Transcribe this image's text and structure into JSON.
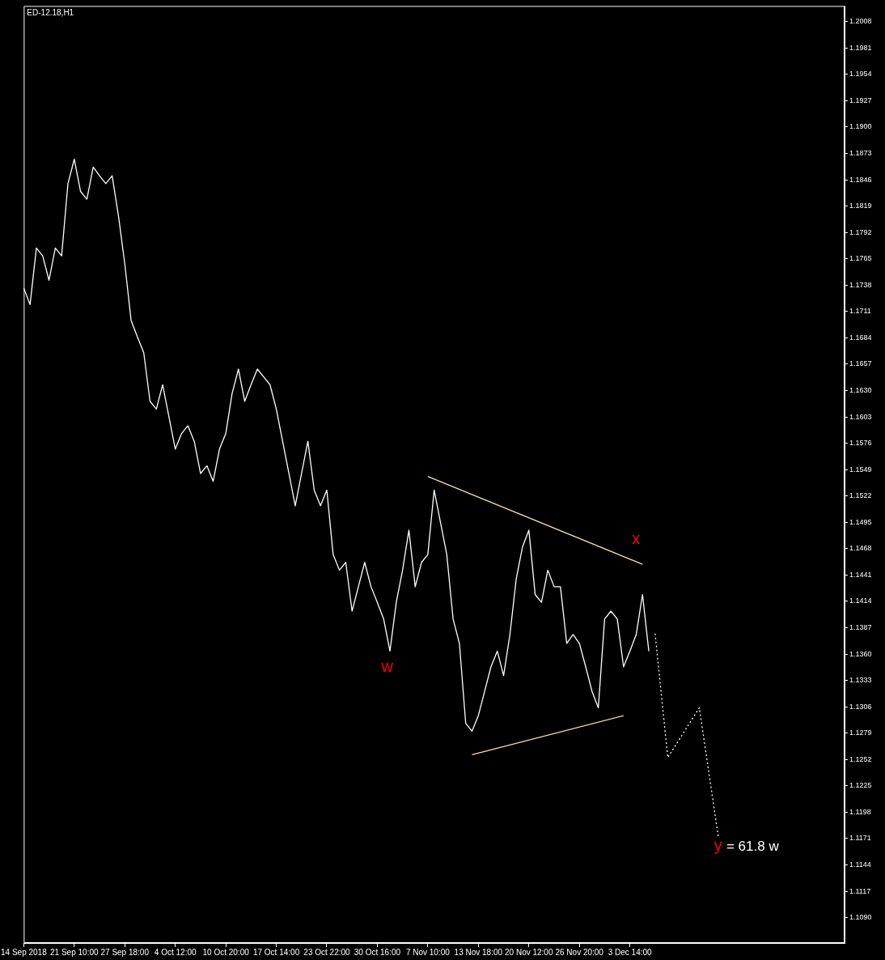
{
  "chart_data": {
    "type": "line",
    "title": "ED-12.18,H1",
    "categories": [
      "14 Sep 2018",
      null,
      null,
      null,
      null,
      null,
      null,
      null,
      "21 Sep 10:00",
      null,
      null,
      null,
      null,
      null,
      null,
      null,
      "27 Sep 18:00",
      null,
      null,
      null,
      null,
      null,
      null,
      null,
      "4 Oct 12:00",
      null,
      null,
      null,
      null,
      null,
      null,
      null,
      "10 Oct 20:00",
      null,
      null,
      null,
      null,
      null,
      null,
      null,
      "17 Oct 14:00",
      null,
      null,
      null,
      null,
      null,
      null,
      null,
      "23 Oct 22:00",
      null,
      null,
      null,
      null,
      null,
      null,
      null,
      "30 Oct 16:00",
      null,
      null,
      null,
      null,
      null,
      null,
      null,
      "7 Nov 10:00",
      null,
      null,
      null,
      null,
      null,
      null,
      null,
      "13 Nov 18:00",
      null,
      null,
      null,
      null,
      null,
      null,
      null,
      "20 Nov 12:00",
      null,
      null,
      null,
      null,
      null,
      null,
      null,
      "26 Nov 20:00",
      null,
      null,
      null,
      null,
      null,
      null,
      null,
      "3 Dec 14:00",
      null,
      null,
      null,
      null,
      null,
      null,
      null,
      null,
      null,
      null,
      null,
      null,
      null,
      null,
      null,
      null,
      null,
      null,
      null,
      null,
      null,
      null,
      null,
      null,
      null,
      null,
      null,
      null,
      null,
      null,
      null,
      null,
      null,
      null
    ],
    "series": [
      {
        "color": "#ffffff",
        "values": [
          1.1735,
          1.1718,
          1.1776,
          1.1768,
          1.1743,
          1.1776,
          1.1768,
          1.1842,
          1.1867,
          1.1834,
          1.1826,
          1.1859,
          1.185,
          1.1842,
          1.185,
          1.1809,
          1.176,
          1.1702,
          1.1685,
          1.1669,
          1.1619,
          1.1611,
          1.1636,
          1.1603,
          1.157,
          1.1586,
          1.1594,
          1.1578,
          1.1545,
          1.1553,
          1.1537,
          1.157,
          1.1586,
          1.1627,
          1.1652,
          1.1619,
          1.1636,
          1.1652,
          1.1644,
          1.1636,
          1.1611,
          1.1578,
          1.1545,
          1.1512,
          1.1545,
          1.1578,
          1.1528,
          1.1512,
          1.1528,
          1.1462,
          1.1446,
          1.1454,
          1.1404,
          1.1429,
          1.1454,
          1.1429,
          1.1413,
          1.1396,
          1.1363,
          1.1413,
          1.1446,
          1.1487,
          1.1429,
          1.1454,
          1.1462,
          1.1528,
          1.1495,
          1.1462,
          1.1396,
          1.1371,
          1.1289,
          1.1281,
          1.1297,
          1.1322,
          1.1347,
          1.1363,
          1.1338,
          1.138,
          1.1437,
          1.147,
          1.1487,
          1.1421,
          1.1413,
          1.1446,
          1.1429,
          1.1429,
          1.1371,
          1.138,
          1.1371,
          1.1347,
          1.1322,
          1.1305,
          1.1396,
          1.1404,
          1.1396,
          1.1347,
          1.1363,
          1.138,
          1.1421,
          1.1363,
          null,
          null,
          null,
          null,
          null,
          null,
          null,
          null,
          null,
          null,
          null,
          null,
          null,
          null,
          null,
          null,
          null,
          null,
          null,
          null,
          null,
          null,
          null,
          null,
          null,
          null,
          null,
          null,
          null,
          null,
          null
        ]
      },
      {
        "color": "#ffffff",
        "line_style": "dotted",
        "values": [
          null,
          null,
          null,
          null,
          null,
          null,
          null,
          null,
          null,
          null,
          null,
          null,
          null,
          null,
          null,
          null,
          null,
          null,
          null,
          null,
          null,
          null,
          null,
          null,
          null,
          null,
          null,
          null,
          null,
          null,
          null,
          null,
          null,
          null,
          null,
          null,
          null,
          null,
          null,
          null,
          null,
          null,
          null,
          null,
          null,
          null,
          null,
          null,
          null,
          null,
          null,
          null,
          null,
          null,
          null,
          null,
          null,
          null,
          null,
          null,
          null,
          null,
          null,
          null,
          null,
          null,
          null,
          null,
          null,
          null,
          null,
          null,
          null,
          null,
          null,
          null,
          null,
          null,
          null,
          null,
          null,
          null,
          null,
          null,
          null,
          null,
          null,
          null,
          null,
          null,
          null,
          null,
          null,
          null,
          null,
          null,
          null,
          null,
          null,
          null,
          1.1381,
          null,
          1.1254,
          null,
          null,
          null,
          null,
          1.1305,
          null,
          null,
          1.1173,
          null,
          null,
          null,
          null,
          null,
          null,
          null,
          null,
          null,
          null,
          null,
          null,
          null,
          null,
          null,
          null,
          null,
          null,
          null,
          null
        ]
      },
      {
        "color": "#f5deb3",
        "values": [
          null,
          null,
          null,
          null,
          null,
          null,
          null,
          null,
          null,
          null,
          null,
          null,
          null,
          null,
          null,
          null,
          null,
          null,
          null,
          null,
          null,
          null,
          null,
          null,
          null,
          null,
          null,
          null,
          null,
          null,
          null,
          null,
          null,
          null,
          null,
          null,
          null,
          null,
          null,
          null,
          null,
          null,
          null,
          null,
          null,
          null,
          null,
          null,
          null,
          null,
          null,
          null,
          null,
          null,
          null,
          null,
          null,
          null,
          null,
          null,
          null,
          null,
          null,
          null,
          1.1542,
          null,
          null,
          null,
          null,
          null,
          null,
          null,
          null,
          null,
          null,
          null,
          null,
          null,
          null,
          null,
          null,
          null,
          null,
          null,
          null,
          null,
          null,
          null,
          null,
          null,
          null,
          null,
          null,
          null,
          null,
          null,
          null,
          null,
          1.1452,
          null,
          null,
          null,
          null,
          null,
          null,
          null,
          null,
          null,
          null,
          null,
          null,
          null,
          null,
          null,
          null,
          null,
          null,
          null,
          null,
          null,
          null,
          null,
          null,
          null,
          null,
          null,
          null,
          null,
          null,
          null,
          null
        ]
      },
      {
        "color": "#f5deb3",
        "values": [
          null,
          null,
          null,
          null,
          null,
          null,
          null,
          null,
          null,
          null,
          null,
          null,
          null,
          null,
          null,
          null,
          null,
          null,
          null,
          null,
          null,
          null,
          null,
          null,
          null,
          null,
          null,
          null,
          null,
          null,
          null,
          null,
          null,
          null,
          null,
          null,
          null,
          null,
          null,
          null,
          null,
          null,
          null,
          null,
          null,
          null,
          null,
          null,
          null,
          null,
          null,
          null,
          null,
          null,
          null,
          null,
          null,
          null,
          null,
          null,
          null,
          null,
          null,
          null,
          null,
          null,
          null,
          null,
          null,
          null,
          null,
          1.1257,
          null,
          null,
          null,
          null,
          null,
          null,
          null,
          null,
          null,
          null,
          null,
          null,
          null,
          null,
          null,
          null,
          null,
          null,
          null,
          null,
          null,
          null,
          null,
          1.1297,
          null,
          null,
          null,
          null,
          null,
          null,
          null,
          null,
          null,
          null,
          null,
          null,
          null,
          null,
          null,
          null,
          null,
          null,
          null,
          null,
          null,
          null,
          null,
          null,
          null,
          null,
          null,
          null,
          null,
          null,
          null,
          null,
          null,
          null,
          null
        ]
      }
    ],
    "ylim": [
      1.1064,
      1.2024
    ],
    "yticks": [
      1.2008,
      1.1981,
      1.1954,
      1.1927,
      {
        "value": 1.19,
        "label": "1.1900"
      },
      1.1873,
      1.1846,
      1.1819,
      1.1792,
      1.1765,
      1.1738,
      1.1711,
      1.1684,
      1.1657,
      {
        "value": 1.163,
        "label": "1.1630"
      },
      1.1603,
      1.1576,
      1.1549,
      1.1522,
      1.1495,
      1.1468,
      1.1441,
      1.1414,
      1.1387,
      {
        "value": 1.136,
        "label": "1.1360"
      },
      1.1333,
      1.1306,
      1.1279,
      1.1252,
      1.1225,
      1.1198,
      1.1171,
      1.1144,
      1.1117,
      {
        "value": 1.109,
        "label": "1.1090"
      }
    ],
    "annotations": [
      "w",
      "x",
      "y = 61.8 w"
    ],
    "grid": false,
    "marker": "none",
    "line_style": "solid"
  }
}
